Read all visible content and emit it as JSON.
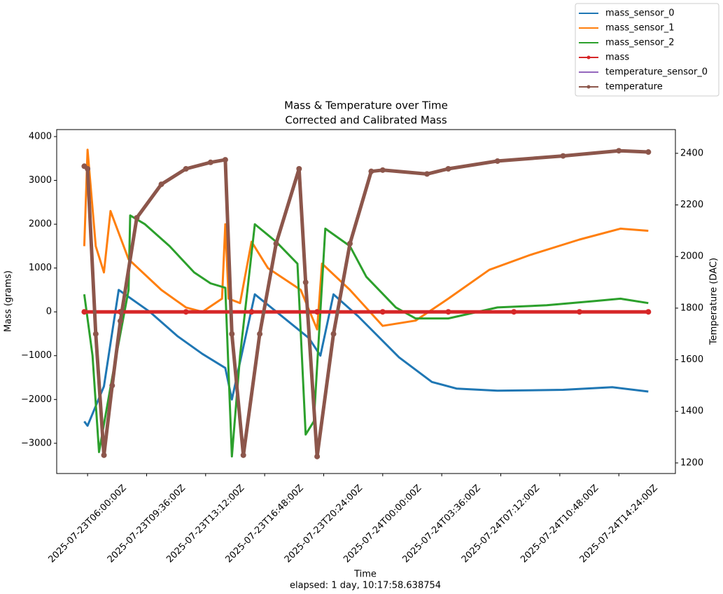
{
  "chart_data": {
    "type": "line",
    "title": "Mass & Temperature over Time",
    "subtitle": "Corrected and Calibrated Mass",
    "x_label": "Time",
    "x_note": "elapsed: 1 day, 10:17:58.638754",
    "y_label": "Mass (grams)",
    "y2_label": "Temperature (DAC)",
    "legend": "upper right",
    "xlim": [
      "2025-07-23T04:07:00Z",
      "2025-07-24T17:51:00Z"
    ],
    "xticks": [
      "2025-07-23T06:00:00Z",
      "2025-07-23T09:36:00Z",
      "2025-07-23T13:12:00Z",
      "2025-07-23T16:48:00Z",
      "2025-07-23T20:24:00Z",
      "2025-07-24T00:00:00Z",
      "2025-07-24T03:36:00Z",
      "2025-07-24T07:12:00Z",
      "2025-07-24T10:48:00Z",
      "2025-07-24T14:24:00Z"
    ],
    "ylim": [
      -3690,
      4160
    ],
    "yticks": [
      {
        "value": -3000,
        "label": "−3000"
      },
      {
        "value": -2000,
        "label": "−2000"
      },
      {
        "value": -1000,
        "label": "−1000"
      },
      0,
      1000,
      2000,
      3000,
      4000
    ],
    "y2lim": [
      1159,
      2492
    ],
    "y2ticks": [
      1200,
      1400,
      1600,
      1800,
      2000,
      2200,
      2400
    ],
    "series": [
      {
        "name": "mass_sensor_0",
        "color": "#1f77b4",
        "axis": "y",
        "marker": false,
        "x": [
          "2025-07-23T05:48:00Z",
          "2025-07-23T06:00:00Z",
          "2025-07-23T07:00:00Z",
          "2025-07-23T07:54:00Z",
          "2025-07-23T09:48:00Z",
          "2025-07-23T11:30:00Z",
          "2025-07-23T13:00:00Z",
          "2025-07-23T14:24:00Z",
          "2025-07-23T14:48:00Z",
          "2025-07-23T16:12:00Z",
          "2025-07-23T19:30:00Z",
          "2025-07-23T20:12:00Z",
          "2025-07-23T21:00:00Z",
          "2025-07-23T22:30:00Z",
          "2025-07-24T01:00:00Z",
          "2025-07-24T03:00:00Z",
          "2025-07-24T04:30:00Z",
          "2025-07-24T07:00:00Z",
          "2025-07-24T11:00:00Z",
          "2025-07-24T14:00:00Z",
          "2025-07-24T16:12:00Z"
        ],
        "values": [
          -2500,
          -2600,
          -1700,
          500,
          0,
          -560,
          -960,
          -1280,
          -2000,
          400,
          -600,
          -1000,
          400,
          -100,
          -1040,
          -1600,
          -1750,
          -1800,
          -1780,
          -1720,
          -1820
        ]
      },
      {
        "name": "mass_sensor_1",
        "color": "#ff7f0e",
        "axis": "y",
        "marker": false,
        "x": [
          "2025-07-23T05:48:00Z",
          "2025-07-23T06:00:00Z",
          "2025-07-23T06:30:00Z",
          "2025-07-23T07:00:00Z",
          "2025-07-23T07:24:00Z",
          "2025-07-23T08:30:00Z",
          "2025-07-23T10:30:00Z",
          "2025-07-23T12:00:00Z",
          "2025-07-23T13:00:00Z",
          "2025-07-23T14:12:00Z",
          "2025-07-23T14:24:00Z",
          "2025-07-23T14:36:00Z",
          "2025-07-23T15:18:00Z",
          "2025-07-23T16:00:00Z",
          "2025-07-23T17:00:00Z",
          "2025-07-23T19:00:00Z",
          "2025-07-23T20:00:00Z",
          "2025-07-23T20:18:00Z",
          "2025-07-23T22:00:00Z",
          "2025-07-24T00:00:00Z",
          "2025-07-24T02:00:00Z",
          "2025-07-24T04:00:00Z",
          "2025-07-24T06:30:00Z",
          "2025-07-24T09:00:00Z",
          "2025-07-24T12:00:00Z",
          "2025-07-24T14:30:00Z",
          "2025-07-24T16:12:00Z"
        ],
        "values": [
          1500,
          3700,
          1500,
          900,
          2300,
          1200,
          500,
          100,
          0,
          300,
          2000,
          300,
          200,
          1600,
          1000,
          500,
          -400,
          1100,
          500,
          -320,
          -200,
          300,
          960,
          1300,
          1650,
          1900,
          1850
        ]
      },
      {
        "name": "mass_sensor_2",
        "color": "#2ca02c",
        "axis": "y",
        "marker": false,
        "x": [
          "2025-07-23T05:48:00Z",
          "2025-07-23T06:18:00Z",
          "2025-07-23T06:42:00Z",
          "2025-07-23T07:30:00Z",
          "2025-07-23T08:30:00Z",
          "2025-07-23T08:36:00Z",
          "2025-07-23T09:30:00Z",
          "2025-07-23T11:00:00Z",
          "2025-07-23T12:30:00Z",
          "2025-07-23T13:30:00Z",
          "2025-07-23T14:24:00Z",
          "2025-07-23T14:48:00Z",
          "2025-07-23T15:18:00Z",
          "2025-07-23T16:12:00Z",
          "2025-07-23T17:30:00Z",
          "2025-07-23T18:48:00Z",
          "2025-07-23T19:18:00Z",
          "2025-07-23T19:48:00Z",
          "2025-07-23T20:30:00Z",
          "2025-07-23T22:00:00Z",
          "2025-07-23T23:00:00Z",
          "2025-07-24T00:48:00Z",
          "2025-07-24T02:00:00Z",
          "2025-07-24T04:00:00Z",
          "2025-07-24T07:00:00Z",
          "2025-07-24T10:00:00Z",
          "2025-07-24T13:00:00Z",
          "2025-07-24T14:30:00Z",
          "2025-07-24T16:12:00Z"
        ],
        "values": [
          400,
          -1000,
          -3200,
          -1500,
          500,
          2200,
          2000,
          1500,
          900,
          650,
          550,
          -3300,
          -1000,
          2000,
          1600,
          1100,
          -2800,
          -2500,
          1900,
          1500,
          800,
          100,
          -150,
          -150,
          100,
          150,
          250,
          300,
          200
        ]
      },
      {
        "name": "mass",
        "color": "#d62728",
        "axis": "y",
        "marker": true,
        "x": [
          "2025-07-23T05:48:00Z",
          "2025-07-23T08:00:00Z",
          "2025-07-23T12:00:00Z",
          "2025-07-23T16:00:00Z",
          "2025-07-23T20:00:00Z",
          "2025-07-24T00:00:00Z",
          "2025-07-24T04:00:00Z",
          "2025-07-24T08:00:00Z",
          "2025-07-24T12:00:00Z",
          "2025-07-24T16:12:00Z"
        ],
        "values": [
          0,
          0,
          0,
          0,
          0,
          0,
          0,
          0,
          0,
          0
        ]
      },
      {
        "name": "temperature_sensor_0",
        "color": "#9467bd",
        "axis": "y2",
        "marker": false,
        "x": [
          "2025-07-23T05:48:00Z",
          "2025-07-23T06:00:00Z",
          "2025-07-23T06:30:00Z",
          "2025-07-23T07:00:00Z",
          "2025-07-23T07:30:00Z",
          "2025-07-23T08:00:00Z",
          "2025-07-23T09:00:00Z",
          "2025-07-23T10:30:00Z",
          "2025-07-23T12:00:00Z",
          "2025-07-23T13:30:00Z",
          "2025-07-23T14:24:00Z",
          "2025-07-23T14:48:00Z",
          "2025-07-23T15:30:00Z",
          "2025-07-23T16:30:00Z",
          "2025-07-23T17:30:00Z",
          "2025-07-23T18:54:00Z",
          "2025-07-23T19:18:00Z",
          "2025-07-23T20:00:00Z",
          "2025-07-23T21:00:00Z",
          "2025-07-23T22:00:00Z",
          "2025-07-23T23:18:00Z",
          "2025-07-24T00:00:00Z",
          "2025-07-24T02:42:00Z",
          "2025-07-24T04:00:00Z",
          "2025-07-24T07:00:00Z",
          "2025-07-24T11:00:00Z",
          "2025-07-24T14:24:00Z",
          "2025-07-24T16:12:00Z"
        ],
        "values": [
          2350,
          2340,
          1700,
          1230,
          1500,
          1750,
          2150,
          2280,
          2340,
          2365,
          2375,
          1700,
          1230,
          1700,
          2050,
          2340,
          1900,
          1225,
          1700,
          2050,
          2330,
          2335,
          2320,
          2340,
          2370,
          2390,
          2410,
          2405
        ]
      },
      {
        "name": "temperature",
        "color": "#8c564b",
        "axis": "y2",
        "marker": true,
        "x": [
          "2025-07-23T05:48:00Z",
          "2025-07-23T06:00:00Z",
          "2025-07-23T06:30:00Z",
          "2025-07-23T07:00:00Z",
          "2025-07-23T07:30:00Z",
          "2025-07-23T08:00:00Z",
          "2025-07-23T09:00:00Z",
          "2025-07-23T10:30:00Z",
          "2025-07-23T12:00:00Z",
          "2025-07-23T13:30:00Z",
          "2025-07-23T14:24:00Z",
          "2025-07-23T14:48:00Z",
          "2025-07-23T15:30:00Z",
          "2025-07-23T16:30:00Z",
          "2025-07-23T17:30:00Z",
          "2025-07-23T18:54:00Z",
          "2025-07-23T19:18:00Z",
          "2025-07-23T20:00:00Z",
          "2025-07-23T21:00:00Z",
          "2025-07-23T22:00:00Z",
          "2025-07-23T23:18:00Z",
          "2025-07-24T00:00:00Z",
          "2025-07-24T02:42:00Z",
          "2025-07-24T04:00:00Z",
          "2025-07-24T07:00:00Z",
          "2025-07-24T11:00:00Z",
          "2025-07-24T14:24:00Z",
          "2025-07-24T16:12:00Z"
        ],
        "values": [
          2350,
          2340,
          1700,
          1230,
          1500,
          1750,
          2150,
          2280,
          2340,
          2365,
          2375,
          1700,
          1230,
          1700,
          2050,
          2340,
          1900,
          1225,
          1700,
          2050,
          2330,
          2335,
          2320,
          2340,
          2370,
          2390,
          2410,
          2405
        ]
      }
    ]
  }
}
